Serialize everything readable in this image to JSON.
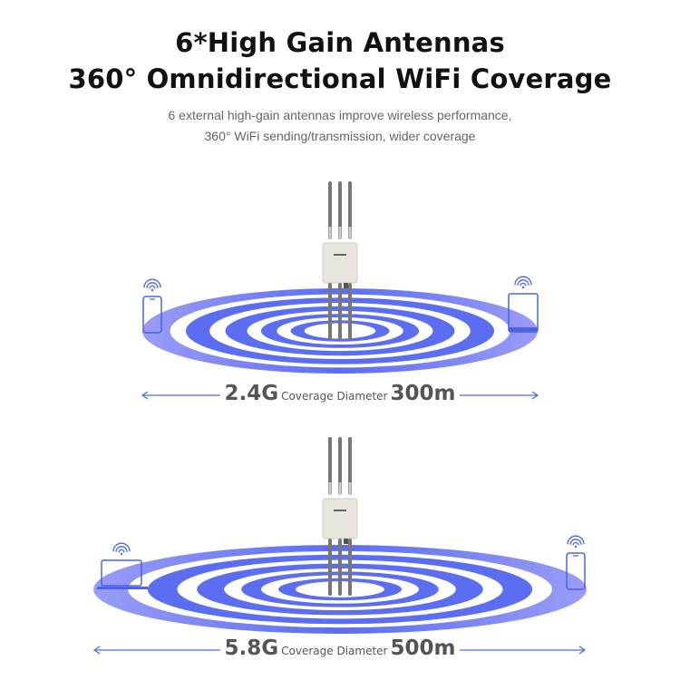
{
  "header": {
    "title_line1": "6*High Gain Antennas",
    "title_line2": "360° Omnidirectional WiFi Coverage",
    "subtitle_line1": "6 external high-gain antennas improve wireless performance,",
    "subtitle_line2": "360° WiFi sending/transmission, wider coverage"
  },
  "band_24": {
    "band": "2.4G",
    "label": "Coverage Diameter",
    "distance": "300m",
    "left_device": "phone-icon",
    "right_device": "tablet-icon"
  },
  "band_58": {
    "band": "5.8G",
    "label": "Coverage Diameter",
    "distance": "500m",
    "left_device": "laptop-icon",
    "right_device": "phone-icon"
  },
  "colors": {
    "ring_blue": "#5b6ef2",
    "ring_light": "#9a9cf6",
    "arrow": "#4d6fe0",
    "device": "#4a63e8",
    "caption": "#555555"
  }
}
